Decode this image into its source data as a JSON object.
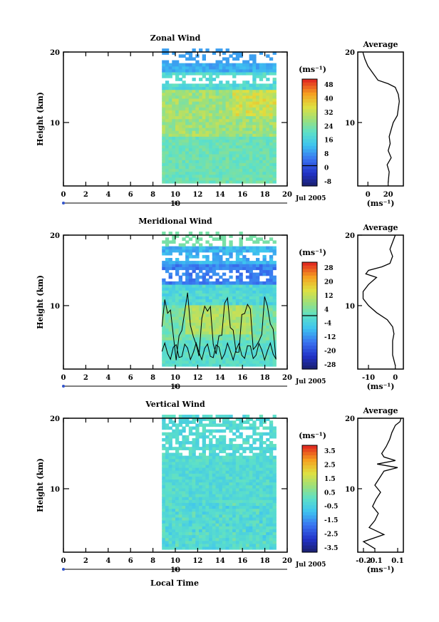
{
  "figure": {
    "date_label": "Jul 2005",
    "xlabel": "Local Time",
    "day_tick_label": "10"
  },
  "colors": {
    "frame": "#000000",
    "background": "#ffffff",
    "missing_data": "#ffffff"
  },
  "chart_data": [
    {
      "type": "heatmap",
      "title": "Zonal Wind",
      "xlabel": "Local Time",
      "ylabel": "Height (km)",
      "x_ticks": [
        "0",
        "2",
        "4",
        "6",
        "8",
        "10",
        "12",
        "14",
        "16",
        "18",
        "20"
      ],
      "y_ticks": [
        "10",
        "20"
      ],
      "xlim": [
        0,
        20
      ],
      "ylim": [
        1,
        20
      ],
      "data_x_range": [
        8.8,
        19.0
      ],
      "contour_zero": false,
      "colorbar": {
        "unit": "(ms⁻¹)",
        "labels": [
          "48",
          "40",
          "32",
          "24",
          "16",
          "8",
          "0",
          "-8"
        ],
        "range": [
          -12,
          52
        ]
      },
      "pattern": "zonal",
      "profile": {
        "title": "Average",
        "xlabel": "(ms⁻¹)",
        "x_ticks": [
          "0",
          "20"
        ],
        "xlim": [
          -10,
          35
        ],
        "x_tick_values": [
          0,
          20
        ],
        "heights": [
          1.5,
          3,
          4,
          5,
          6,
          7,
          8,
          9,
          10,
          11,
          12,
          13,
          14,
          15,
          15.5,
          16,
          17,
          18,
          19,
          20
        ],
        "values": [
          20,
          21,
          19,
          23,
          20,
          22,
          21,
          23,
          25,
          29,
          30,
          31,
          30,
          27,
          20,
          10,
          5,
          0,
          -3,
          -5
        ]
      }
    },
    {
      "type": "heatmap",
      "title": "Meridional Wind",
      "xlabel": "Local Time",
      "ylabel": "Height (km)",
      "x_ticks": [
        "0",
        "2",
        "4",
        "6",
        "8",
        "10",
        "12",
        "14",
        "16",
        "18",
        "20"
      ],
      "y_ticks": [
        "10",
        "20"
      ],
      "xlim": [
        0,
        20
      ],
      "ylim": [
        1,
        20
      ],
      "data_x_range": [
        8.8,
        19.0
      ],
      "contour_zero": true,
      "colorbar": {
        "unit": "(ms⁻¹)",
        "labels": [
          "28",
          "20",
          "12",
          "4",
          "-4",
          "-12",
          "-20",
          "-28"
        ],
        "range": [
          -30,
          30
        ]
      },
      "pattern": "meridional",
      "profile": {
        "title": "Average",
        "xlabel": "(ms⁻¹)",
        "x_ticks": [
          "-10",
          "0"
        ],
        "xlim": [
          -14,
          3
        ],
        "x_tick_values": [
          -10,
          0
        ],
        "heights": [
          1.5,
          3,
          4,
          5,
          6,
          7,
          8,
          9,
          10,
          11,
          12,
          13,
          14,
          14.5,
          15,
          15.5,
          16,
          17,
          18,
          19,
          20
        ],
        "values": [
          0,
          -1,
          -1,
          -1,
          -0.5,
          -1,
          -3,
          -7,
          -10,
          -12,
          -12,
          -10,
          -7,
          -11,
          -10,
          -5,
          -2,
          -1,
          -2,
          -1,
          0
        ]
      }
    },
    {
      "type": "heatmap",
      "title": "Vertical Wind",
      "xlabel": "Local Time",
      "ylabel": "Height (km)",
      "x_ticks": [
        "0",
        "2",
        "4",
        "6",
        "8",
        "10",
        "12",
        "14",
        "16",
        "18",
        "20"
      ],
      "y_ticks": [
        "10",
        "20"
      ],
      "xlim": [
        0,
        20
      ],
      "ylim": [
        1,
        20
      ],
      "data_x_range": [
        8.8,
        19.0
      ],
      "contour_zero": false,
      "colorbar": {
        "unit": "(ms⁻¹)",
        "labels": [
          "3.5",
          "2.5",
          "1.5",
          "0.5",
          "-0.5",
          "-1.5",
          "-2.5",
          "-3.5"
        ],
        "range": [
          -4,
          4
        ]
      },
      "pattern": "vertical",
      "profile": {
        "title": "Average",
        "xlabel": "(ms⁻¹)",
        "x_ticks": [
          "-0.2",
          "-0.1",
          "0.1"
        ],
        "xlim": [
          -0.25,
          0.15
        ],
        "x_tick_values": [
          -0.2,
          -0.1,
          0.1
        ],
        "heights": [
          1.5,
          2.5,
          3.5,
          4.5,
          5.5,
          6.5,
          7.5,
          8.5,
          9.5,
          10.5,
          11.5,
          12.5,
          13,
          13.5,
          14,
          14.5,
          15,
          16,
          17,
          18,
          19,
          19.5,
          20
        ],
        "values": [
          -0.1,
          -0.2,
          -0.02,
          -0.15,
          -0.1,
          -0.07,
          -0.12,
          -0.09,
          -0.05,
          -0.1,
          -0.06,
          -0.02,
          0.1,
          -0.08,
          0.08,
          -0.02,
          -0.04,
          0.0,
          0.03,
          0.05,
          0.08,
          0.12,
          0.13
        ]
      }
    }
  ]
}
